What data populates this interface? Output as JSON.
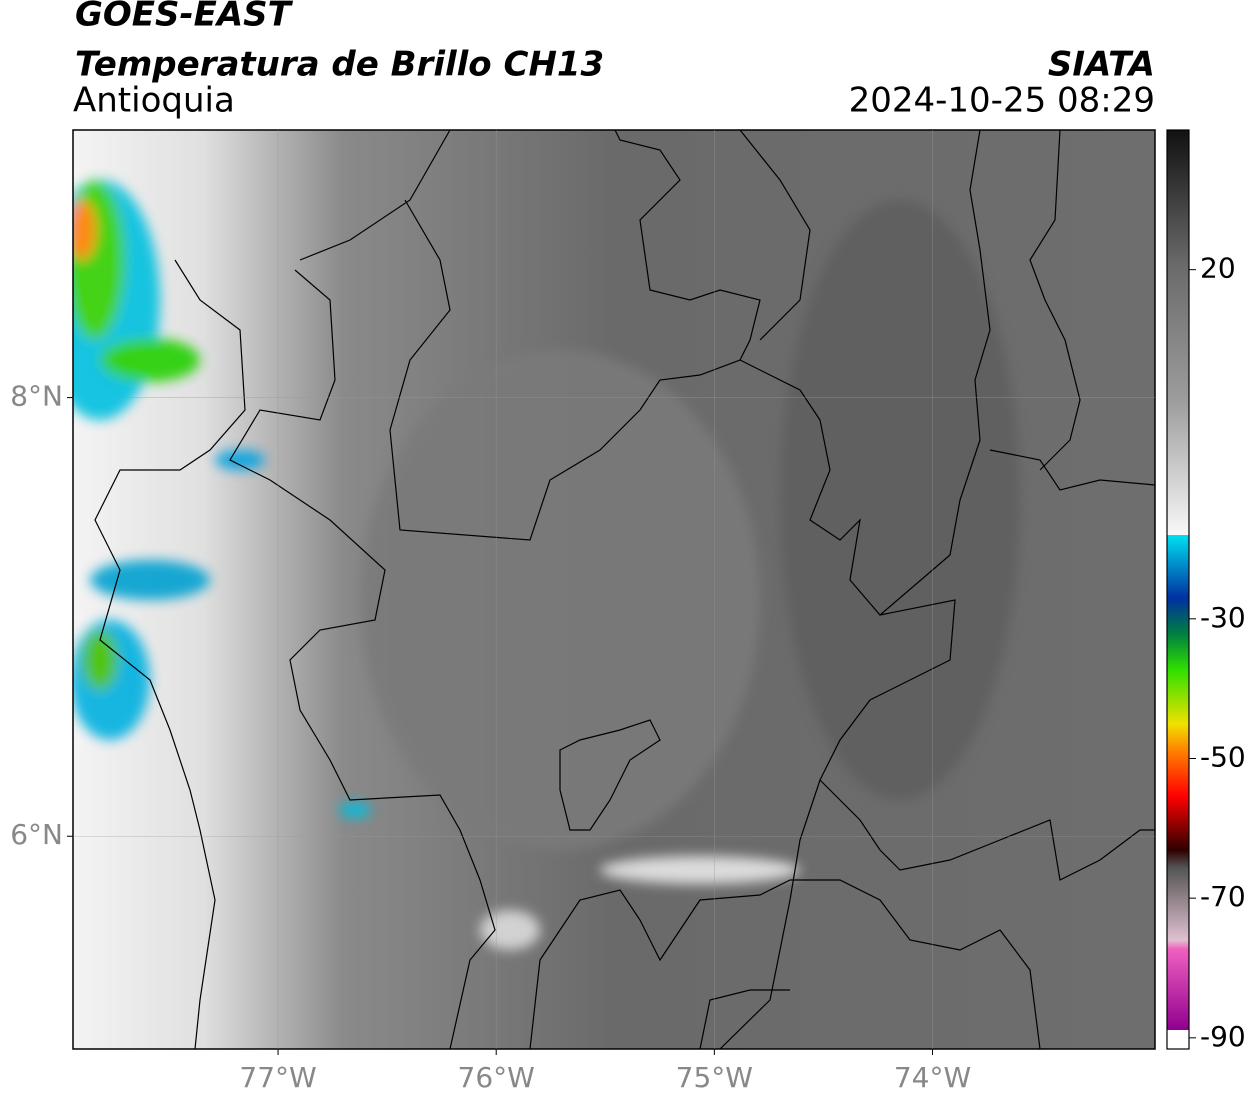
{
  "header": {
    "title": "GOES-EAST",
    "subtitle": "Temperatura de Brillo CH13",
    "region": "Antioquia",
    "source": "SIATA",
    "datetime": "2024-10-25 08:29"
  },
  "map": {
    "xlim": [
      -77.94,
      -72.98
    ],
    "ylim": [
      5.03,
      9.22
    ],
    "xticks": [
      {
        "value": -77,
        "label": "77°W"
      },
      {
        "value": -76,
        "label": "76°W"
      },
      {
        "value": -75,
        "label": "75°W"
      },
      {
        "value": -74,
        "label": "74°W"
      }
    ],
    "yticks": [
      {
        "value": 8,
        "label": "8°N"
      },
      {
        "value": 6,
        "label": "6°N"
      }
    ],
    "grid": true
  },
  "colorbar": {
    "lim": [
      -91.6,
      40
    ],
    "ticks": [
      20,
      -30,
      -50,
      -70,
      -90
    ]
  }
}
